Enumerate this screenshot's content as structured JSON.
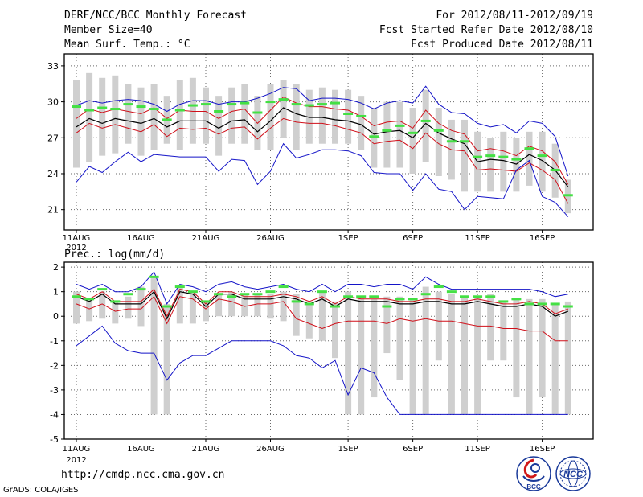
{
  "header": {
    "title": "DERF/NCC/BCC Monthly Forecast",
    "member_size": "Member Size=40",
    "variable": "Mean Surf. Temp.: °C",
    "period": "For 2012/08/11-2012/09/19",
    "refer_date": "Fcst Started Refer Date 2012/08/10",
    "produced_date": "Fcst Produced Date 2012/08/11"
  },
  "footer": {
    "url": "http://cmdp.ncc.cma.gov.cn",
    "credit": "GrADS: COLA/IGES",
    "logo1_text": "BCC",
    "logo2_text": "NCC"
  },
  "colors": {
    "mean": "#000000",
    "spread": "#d0101a",
    "extreme": "#1414c8",
    "box": "#cfcfcf",
    "observed": "#44e044",
    "grid": "#6a6a6a"
  },
  "chart_data": [
    {
      "type": "box-line",
      "title": "Mean Surf. Temp.: °C",
      "xlabel": "",
      "ylabel": "",
      "ylim": [
        19.3,
        34
      ],
      "yticks": [
        21,
        24,
        27,
        30,
        33
      ],
      "x_tick_labels": [
        "11AUG",
        "16AUG",
        "21AUG",
        "26AUG",
        "1SEP",
        "6SEP",
        "11SEP",
        "16SEP"
      ],
      "x_tick_days": [
        0,
        5,
        10,
        15,
        21,
        26,
        31,
        36
      ],
      "year_label": "2012",
      "series": [
        {
          "name": "ensemble-mean",
          "values": [
            27.9,
            28.6,
            28.2,
            28.6,
            28.4,
            28.2,
            28.6,
            27.9,
            28.4,
            28.4,
            28.4,
            27.8,
            28.4,
            28.5,
            27.5,
            28.4,
            29.5,
            29.0,
            28.7,
            28.7,
            28.5,
            28.4,
            28.1,
            27.3,
            27.5,
            27.6,
            27.0,
            28.2,
            27.4,
            26.9,
            26.5,
            25.0,
            25.2,
            25.1,
            24.8,
            25.6,
            25.1,
            24.3,
            22.9
          ]
        },
        {
          "name": "mean-plus-spread",
          "values": [
            28.6,
            29.4,
            29.1,
            29.4,
            29.2,
            29.0,
            29.5,
            28.6,
            29.3,
            29.2,
            29.2,
            28.6,
            29.2,
            29.4,
            28.2,
            29.3,
            30.4,
            29.9,
            29.6,
            29.6,
            29.4,
            29.3,
            28.8,
            28.0,
            28.3,
            28.4,
            27.8,
            29.3,
            28.2,
            27.6,
            27.3,
            25.9,
            26.1,
            25.9,
            25.5,
            26.3,
            25.9,
            25.0,
            23.1
          ]
        },
        {
          "name": "mean-minus-spread",
          "values": [
            27.4,
            28.2,
            27.8,
            28.1,
            27.8,
            27.5,
            28.1,
            27.1,
            27.8,
            27.7,
            27.8,
            27.3,
            27.8,
            27.9,
            26.9,
            27.8,
            28.6,
            28.3,
            28.2,
            28.2,
            28.0,
            27.7,
            27.4,
            26.5,
            26.7,
            26.8,
            26.1,
            27.4,
            26.5,
            26.0,
            25.9,
            24.3,
            24.4,
            24.3,
            24.2,
            24.9,
            24.3,
            23.5,
            21.5
          ]
        },
        {
          "name": "ensemble-max",
          "values": [
            29.7,
            30.1,
            29.9,
            30.1,
            30.2,
            30.1,
            29.8,
            29.2,
            29.8,
            30.1,
            30.1,
            29.8,
            30.0,
            30.0,
            30.3,
            30.7,
            31.2,
            31.1,
            30.1,
            30.3,
            30.3,
            30.2,
            29.9,
            29.4,
            29.9,
            30.1,
            29.9,
            31.3,
            29.8,
            29.1,
            29.0,
            28.2,
            27.9,
            28.1,
            27.4,
            28.4,
            28.2,
            27.1,
            23.8
          ]
        },
        {
          "name": "ensemble-min",
          "values": [
            23.3,
            24.6,
            24.1,
            25.0,
            25.8,
            25.0,
            25.6,
            25.5,
            25.4,
            25.4,
            25.4,
            24.2,
            25.2,
            25.1,
            23.1,
            24.2,
            26.5,
            25.3,
            25.6,
            26.0,
            26.0,
            25.9,
            25.5,
            24.1,
            24.0,
            24.0,
            22.6,
            24.0,
            22.7,
            22.5,
            21.0,
            22.1,
            22.0,
            21.9,
            24.3,
            25.1,
            22.1,
            21.6,
            20.4
          ]
        },
        {
          "name": "observed-or-median",
          "values": [
            29.6,
            29.3,
            29.5,
            29.4,
            29.8,
            29.6,
            29.4,
            28.5,
            29.3,
            29.7,
            29.8,
            29.2,
            29.8,
            29.9,
            29.1,
            30.0,
            30.2,
            29.8,
            29.7,
            29.8,
            29.9,
            29.0,
            28.8,
            27.1,
            27.6,
            28.0,
            27.4,
            28.4,
            27.6,
            26.7,
            26.7,
            25.4,
            25.5,
            25.4,
            25.2,
            26.1,
            25.5,
            24.3,
            22.2
          ]
        }
      ],
      "box_high": [
        31.8,
        32.4,
        32.0,
        32.2,
        31.5,
        31.2,
        31.5,
        30.5,
        31.8,
        32.0,
        31.2,
        30.5,
        31.2,
        31.5,
        30.5,
        31.5,
        31.8,
        31.5,
        31.0,
        31.2,
        31.0,
        31.0,
        30.5,
        29.5,
        30.0,
        30.0,
        29.5,
        31.0,
        29.5,
        28.5,
        28.5,
        27.5,
        27.0,
        27.5,
        27.0,
        27.5,
        27.5,
        26.5,
        23.5
      ],
      "box_low": [
        24.5,
        25.0,
        25.5,
        25.7,
        26.5,
        25.5,
        26.0,
        26.5,
        26.0,
        26.5,
        26.5,
        25.5,
        26.5,
        26.5,
        26.0,
        26.0,
        27.0,
        26.0,
        26.5,
        26.5,
        26.5,
        26.5,
        26.0,
        24.5,
        24.5,
        24.5,
        24.0,
        25.0,
        23.8,
        23.5,
        22.5,
        22.5,
        22.5,
        22.5,
        22.5,
        23.0,
        22.5,
        22.0,
        20.7
      ]
    },
    {
      "type": "box-line",
      "title": "Prec.: log(mm/d)",
      "xlabel": "",
      "ylabel": "",
      "ylim": [
        -5,
        2.2
      ],
      "yticks": [
        -5,
        -4,
        -3,
        -2,
        -1,
        0,
        1,
        2
      ],
      "x_tick_labels": [
        "11AUG",
        "16AUG",
        "21AUG",
        "26AUG",
        "1SEP",
        "6SEP",
        "11SEP",
        "16SEP"
      ],
      "x_tick_days": [
        0,
        5,
        10,
        15,
        21,
        26,
        31,
        36
      ],
      "year_label": "2012",
      "series": [
        {
          "name": "ensemble-mean",
          "values": [
            0.8,
            0.6,
            0.9,
            0.5,
            0.5,
            0.5,
            1.0,
            -0.1,
            1.0,
            0.9,
            0.4,
            0.9,
            0.9,
            0.7,
            0.7,
            0.7,
            0.8,
            0.7,
            0.5,
            0.7,
            0.4,
            0.7,
            0.6,
            0.6,
            0.6,
            0.5,
            0.5,
            0.6,
            0.6,
            0.5,
            0.5,
            0.6,
            0.5,
            0.4,
            0.4,
            0.5,
            0.4,
            0.0,
            0.2
          ]
        },
        {
          "name": "mean-plus-spread",
          "values": [
            0.9,
            0.7,
            1.0,
            0.6,
            0.6,
            0.6,
            1.1,
            0.0,
            1.1,
            1.0,
            0.5,
            1.0,
            1.0,
            0.8,
            0.8,
            0.8,
            0.9,
            0.8,
            0.6,
            0.8,
            0.5,
            0.8,
            0.7,
            0.7,
            0.7,
            0.6,
            0.6,
            0.7,
            0.7,
            0.6,
            0.6,
            0.7,
            0.6,
            0.5,
            0.5,
            0.6,
            0.5,
            0.1,
            0.3
          ]
        },
        {
          "name": "mean-minus-spread",
          "values": [
            0.5,
            0.3,
            0.5,
            0.2,
            0.3,
            0.3,
            0.8,
            -0.3,
            0.8,
            0.7,
            0.3,
            0.7,
            0.6,
            0.4,
            0.5,
            0.5,
            0.6,
            -0.1,
            -0.3,
            -0.5,
            -0.3,
            -0.2,
            -0.2,
            -0.2,
            -0.3,
            -0.1,
            -0.2,
            -0.1,
            -0.2,
            -0.2,
            -0.3,
            -0.4,
            -0.4,
            -0.5,
            -0.5,
            -0.6,
            -0.6,
            -1.0,
            -1.0
          ]
        },
        {
          "name": "ensemble-max",
          "values": [
            1.3,
            1.1,
            1.3,
            1.0,
            1.0,
            1.2,
            1.8,
            0.5,
            1.3,
            1.2,
            1.0,
            1.3,
            1.4,
            1.2,
            1.1,
            1.2,
            1.3,
            1.1,
            1.0,
            1.3,
            1.0,
            1.3,
            1.3,
            1.2,
            1.3,
            1.3,
            1.1,
            1.6,
            1.3,
            1.1,
            1.1,
            1.1,
            1.1,
            1.1,
            1.1,
            1.1,
            1.0,
            0.8,
            0.9
          ]
        },
        {
          "name": "ensemble-min",
          "values": [
            -1.2,
            -0.8,
            -0.4,
            -1.1,
            -1.4,
            -1.5,
            -1.5,
            -2.6,
            -1.9,
            -1.6,
            -1.6,
            -1.3,
            -1.0,
            -1.0,
            -1.0,
            -1.0,
            -1.2,
            -1.6,
            -1.7,
            -2.1,
            -1.8,
            -3.2,
            -2.1,
            -2.3,
            -3.3,
            -4.0,
            -4.0,
            -4.0,
            -4.0,
            -4.0,
            -4.0,
            -4.0,
            -4.0,
            -4.0,
            -4.0,
            -4.0,
            -4.0,
            -4.0,
            -4.0
          ]
        },
        {
          "name": "observed-or-median",
          "values": [
            0.8,
            0.7,
            1.1,
            0.6,
            0.9,
            1.1,
            1.6,
            0.4,
            1.2,
            1.0,
            0.6,
            0.9,
            0.8,
            0.9,
            0.9,
            1.0,
            1.2,
            0.6,
            0.5,
            1.0,
            0.4,
            0.8,
            0.8,
            0.8,
            0.4,
            0.7,
            0.7,
            0.9,
            1.2,
            1.0,
            0.8,
            0.8,
            0.8,
            0.6,
            0.7,
            0.5,
            0.5,
            0.5,
            0.4
          ]
        }
      ],
      "box_high": [
        1.0,
        0.7,
        1.0,
        0.6,
        0.8,
        1.2,
        1.6,
        0.5,
        1.2,
        1.0,
        0.6,
        0.9,
        1.0,
        0.9,
        0.9,
        0.9,
        1.0,
        0.9,
        0.5,
        1.0,
        0.6,
        1.0,
        0.8,
        0.7,
        0.8,
        0.8,
        0.7,
        1.2,
        1.0,
        0.9,
        0.8,
        0.8,
        0.9,
        0.6,
        0.7,
        0.7,
        0.7,
        0.5,
        0.6
      ],
      "box_low": [
        -0.3,
        -0.2,
        -0.1,
        -0.3,
        -0.1,
        -0.4,
        -4.0,
        -4.0,
        -0.3,
        -0.3,
        -0.2,
        0.0,
        0.0,
        0.0,
        0.0,
        -0.1,
        -0.2,
        -0.8,
        -0.9,
        -1.0,
        -1.7,
        -4.0,
        -4.0,
        -3.3,
        -1.5,
        -2.6,
        -4.0,
        -4.0,
        -1.8,
        -4.0,
        -4.0,
        -4.0,
        -1.8,
        -1.8,
        -3.3,
        -4.0,
        -3.3,
        -4.0,
        -4.0
      ]
    }
  ]
}
